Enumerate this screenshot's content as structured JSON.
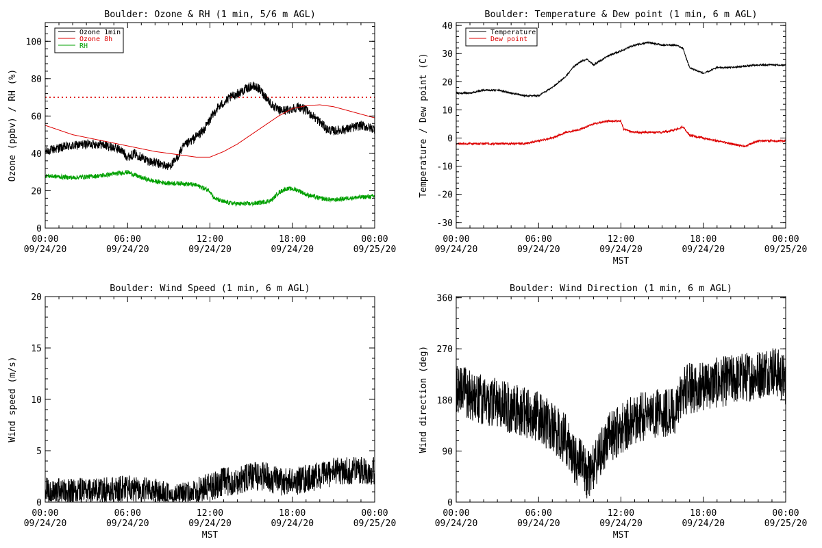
{
  "chart_data": [
    {
      "type": "line",
      "title": "Boulder: Ozone & RH (1 min, 5/6 m AGL)",
      "xlabel": "",
      "ylabel": "Ozone (ppbv) / RH (%)",
      "x_ticks": [
        {
          "hour": 0,
          "time": "00:00",
          "date": "09/24/20"
        },
        {
          "hour": 6,
          "time": "06:00",
          "date": "09/24/20"
        },
        {
          "hour": 12,
          "time": "12:00",
          "date": "09/24/20"
        },
        {
          "hour": 18,
          "time": "18:00",
          "date": "09/24/20"
        },
        {
          "hour": 24,
          "time": "00:00",
          "date": "09/25/20"
        }
      ],
      "xlim": [
        0,
        24
      ],
      "ylim": [
        0,
        110
      ],
      "y_ticks": [
        0,
        20,
        40,
        60,
        80,
        100
      ],
      "legend_position": "top-left",
      "reference_line": {
        "y": 70,
        "color": "#dd0000",
        "style": "dotted"
      },
      "series": [
        {
          "name": "Ozone 1min",
          "color": "#000000",
          "noise": 2.5,
          "x": [
            0,
            1,
            2,
            3,
            4,
            5,
            5.5,
            6,
            6.5,
            7,
            7.5,
            8,
            8.5,
            9,
            9.5,
            10,
            10.5,
            11,
            11.5,
            12,
            12.5,
            13,
            13.5,
            14,
            14.5,
            15,
            15.5,
            16,
            16.5,
            17,
            17.5,
            18,
            18.5,
            19,
            19.5,
            20,
            20.5,
            21,
            22,
            23,
            24
          ],
          "values": [
            41,
            43,
            44,
            45,
            45,
            43,
            42,
            38,
            40,
            38,
            36,
            35,
            34,
            33,
            36,
            43,
            46,
            49,
            52,
            58,
            64,
            67,
            70,
            72,
            74,
            76,
            75,
            71,
            66,
            63,
            63,
            64,
            65,
            63,
            60,
            57,
            53,
            52,
            53,
            55,
            53
          ]
        },
        {
          "name": "Ozone 8h",
          "color": "#dd0000",
          "noise": 0,
          "x": [
            0,
            2,
            4,
            6,
            8,
            10,
            11,
            12,
            13,
            14,
            15,
            16,
            17,
            18,
            19,
            20,
            21,
            22,
            23,
            24
          ],
          "values": [
            55,
            50,
            47,
            44,
            41,
            39,
            38,
            38,
            41,
            45,
            50,
            55,
            60,
            64,
            65.5,
            66,
            65,
            63,
            61,
            59
          ]
        },
        {
          "name": "RH",
          "color": "#00a000",
          "noise": 1.2,
          "x": [
            0,
            2,
            4,
            6,
            7,
            8,
            9,
            10,
            11,
            12,
            12.3,
            13,
            14,
            15,
            16,
            16.5,
            17,
            17.5,
            18,
            18.5,
            19,
            20,
            21,
            22,
            24
          ],
          "values": [
            28,
            27,
            28,
            30,
            27,
            25,
            24,
            24,
            23,
            20,
            16,
            14,
            13,
            13,
            14,
            15,
            19,
            21,
            21,
            20,
            18,
            16,
            15,
            16,
            17
          ]
        }
      ]
    },
    {
      "type": "line",
      "title": "Boulder: Temperature & Dew point (1 min, 6 m AGL)",
      "xlabel": "MST",
      "ylabel": "Temperature / Dew point (C)",
      "x_ticks": [
        {
          "hour": 0,
          "time": "00:00",
          "date": "09/24/20"
        },
        {
          "hour": 6,
          "time": "06:00",
          "date": "09/24/20"
        },
        {
          "hour": 12,
          "time": "12:00",
          "date": "09/24/20"
        },
        {
          "hour": 18,
          "time": "18:00",
          "date": "09/24/20"
        },
        {
          "hour": 24,
          "time": "00:00",
          "date": "09/25/20"
        }
      ],
      "xlim": [
        0,
        24
      ],
      "ylim": [
        -32,
        41
      ],
      "y_ticks": [
        -30,
        -20,
        -10,
        0,
        10,
        20,
        30,
        40
      ],
      "legend_position": "top-left",
      "series": [
        {
          "name": "Temperature",
          "color": "#000000",
          "noise": 0.3,
          "x": [
            0,
            1,
            2,
            3,
            4,
            5,
            6,
            7,
            8,
            8.5,
            9,
            9.5,
            10,
            11,
            12,
            13,
            14,
            15,
            16,
            16.5,
            17,
            18,
            19,
            20,
            22,
            24
          ],
          "values": [
            16,
            16,
            17,
            17,
            16,
            15,
            15,
            18,
            22,
            25,
            27,
            28,
            26,
            29,
            31,
            33,
            34,
            33,
            33,
            32,
            25,
            23,
            25,
            25,
            26,
            26
          ]
        },
        {
          "name": "Dew point",
          "color": "#dd0000",
          "noise": 0.35,
          "x": [
            0,
            2,
            4,
            5,
            6,
            7,
            8,
            9,
            10,
            11,
            12,
            12.2,
            13,
            14,
            15,
            16,
            16.5,
            17,
            18,
            19,
            20,
            21,
            22,
            23,
            24
          ],
          "values": [
            -2,
            -2,
            -2,
            -2,
            -1,
            0,
            2,
            3,
            5,
            6,
            6,
            3,
            2,
            2,
            2,
            3,
            4,
            1,
            0,
            -1,
            -2,
            -3,
            -1,
            -1,
            -1
          ]
        }
      ]
    },
    {
      "type": "line",
      "title": "Boulder: Wind Speed (1 min, 6 m AGL)",
      "xlabel": "MST",
      "ylabel": "Wind speed (m/s)",
      "x_ticks": [
        {
          "hour": 0,
          "time": "00:00",
          "date": "09/24/20"
        },
        {
          "hour": 6,
          "time": "06:00",
          "date": "09/24/20"
        },
        {
          "hour": 12,
          "time": "12:00",
          "date": "09/24/20"
        },
        {
          "hour": 18,
          "time": "18:00",
          "date": "09/24/20"
        },
        {
          "hour": 24,
          "time": "00:00",
          "date": "09/25/20"
        }
      ],
      "xlim": [
        0,
        24
      ],
      "ylim": [
        0,
        20
      ],
      "y_ticks": [
        0,
        5,
        10,
        15,
        20
      ],
      "series": [
        {
          "name": "",
          "color": "#000000",
          "noise": 1.4,
          "floor": 0,
          "x": [
            0,
            2,
            4,
            6,
            8,
            9,
            10,
            11,
            12,
            13,
            14,
            15,
            16,
            17,
            18,
            20,
            21,
            22,
            23,
            24
          ],
          "values": [
            1,
            1,
            1,
            1.2,
            1,
            0.5,
            0.5,
            1,
            1.5,
            2,
            2,
            2.5,
            2.5,
            2,
            2,
            2.5,
            3,
            3,
            3.2,
            3
          ]
        }
      ]
    },
    {
      "type": "line",
      "title": "Boulder: Wind Direction (1 min, 6 m AGL)",
      "xlabel": "MST",
      "ylabel": "Wind direction (deg)",
      "x_ticks": [
        {
          "hour": 0,
          "time": "00:00",
          "date": "09/24/20"
        },
        {
          "hour": 6,
          "time": "06:00",
          "date": "09/24/20"
        },
        {
          "hour": 12,
          "time": "12:00",
          "date": "09/24/20"
        },
        {
          "hour": 18,
          "time": "18:00",
          "date": "09/24/20"
        },
        {
          "hour": 24,
          "time": "00:00",
          "date": "09/25/20"
        }
      ],
      "xlim": [
        0,
        24
      ],
      "ylim": [
        0,
        362
      ],
      "y_ticks": [
        0,
        90,
        180,
        270,
        360
      ],
      "series": [
        {
          "name": "",
          "color": "#000000",
          "noise": 45,
          "floor": 0,
          "ceiling": 360,
          "x": [
            0,
            2,
            4,
            6,
            7,
            8,
            8.5,
            9,
            9.5,
            10,
            10.5,
            11,
            12,
            13,
            14,
            15,
            16,
            16.5,
            17,
            18,
            19,
            20,
            21,
            22,
            23,
            24
          ],
          "values": [
            200,
            180,
            165,
            150,
            130,
            110,
            80,
            70,
            50,
            60,
            80,
            110,
            130,
            145,
            155,
            160,
            155,
            195,
            200,
            205,
            210,
            215,
            220,
            225,
            235,
            215
          ]
        }
      ]
    }
  ]
}
